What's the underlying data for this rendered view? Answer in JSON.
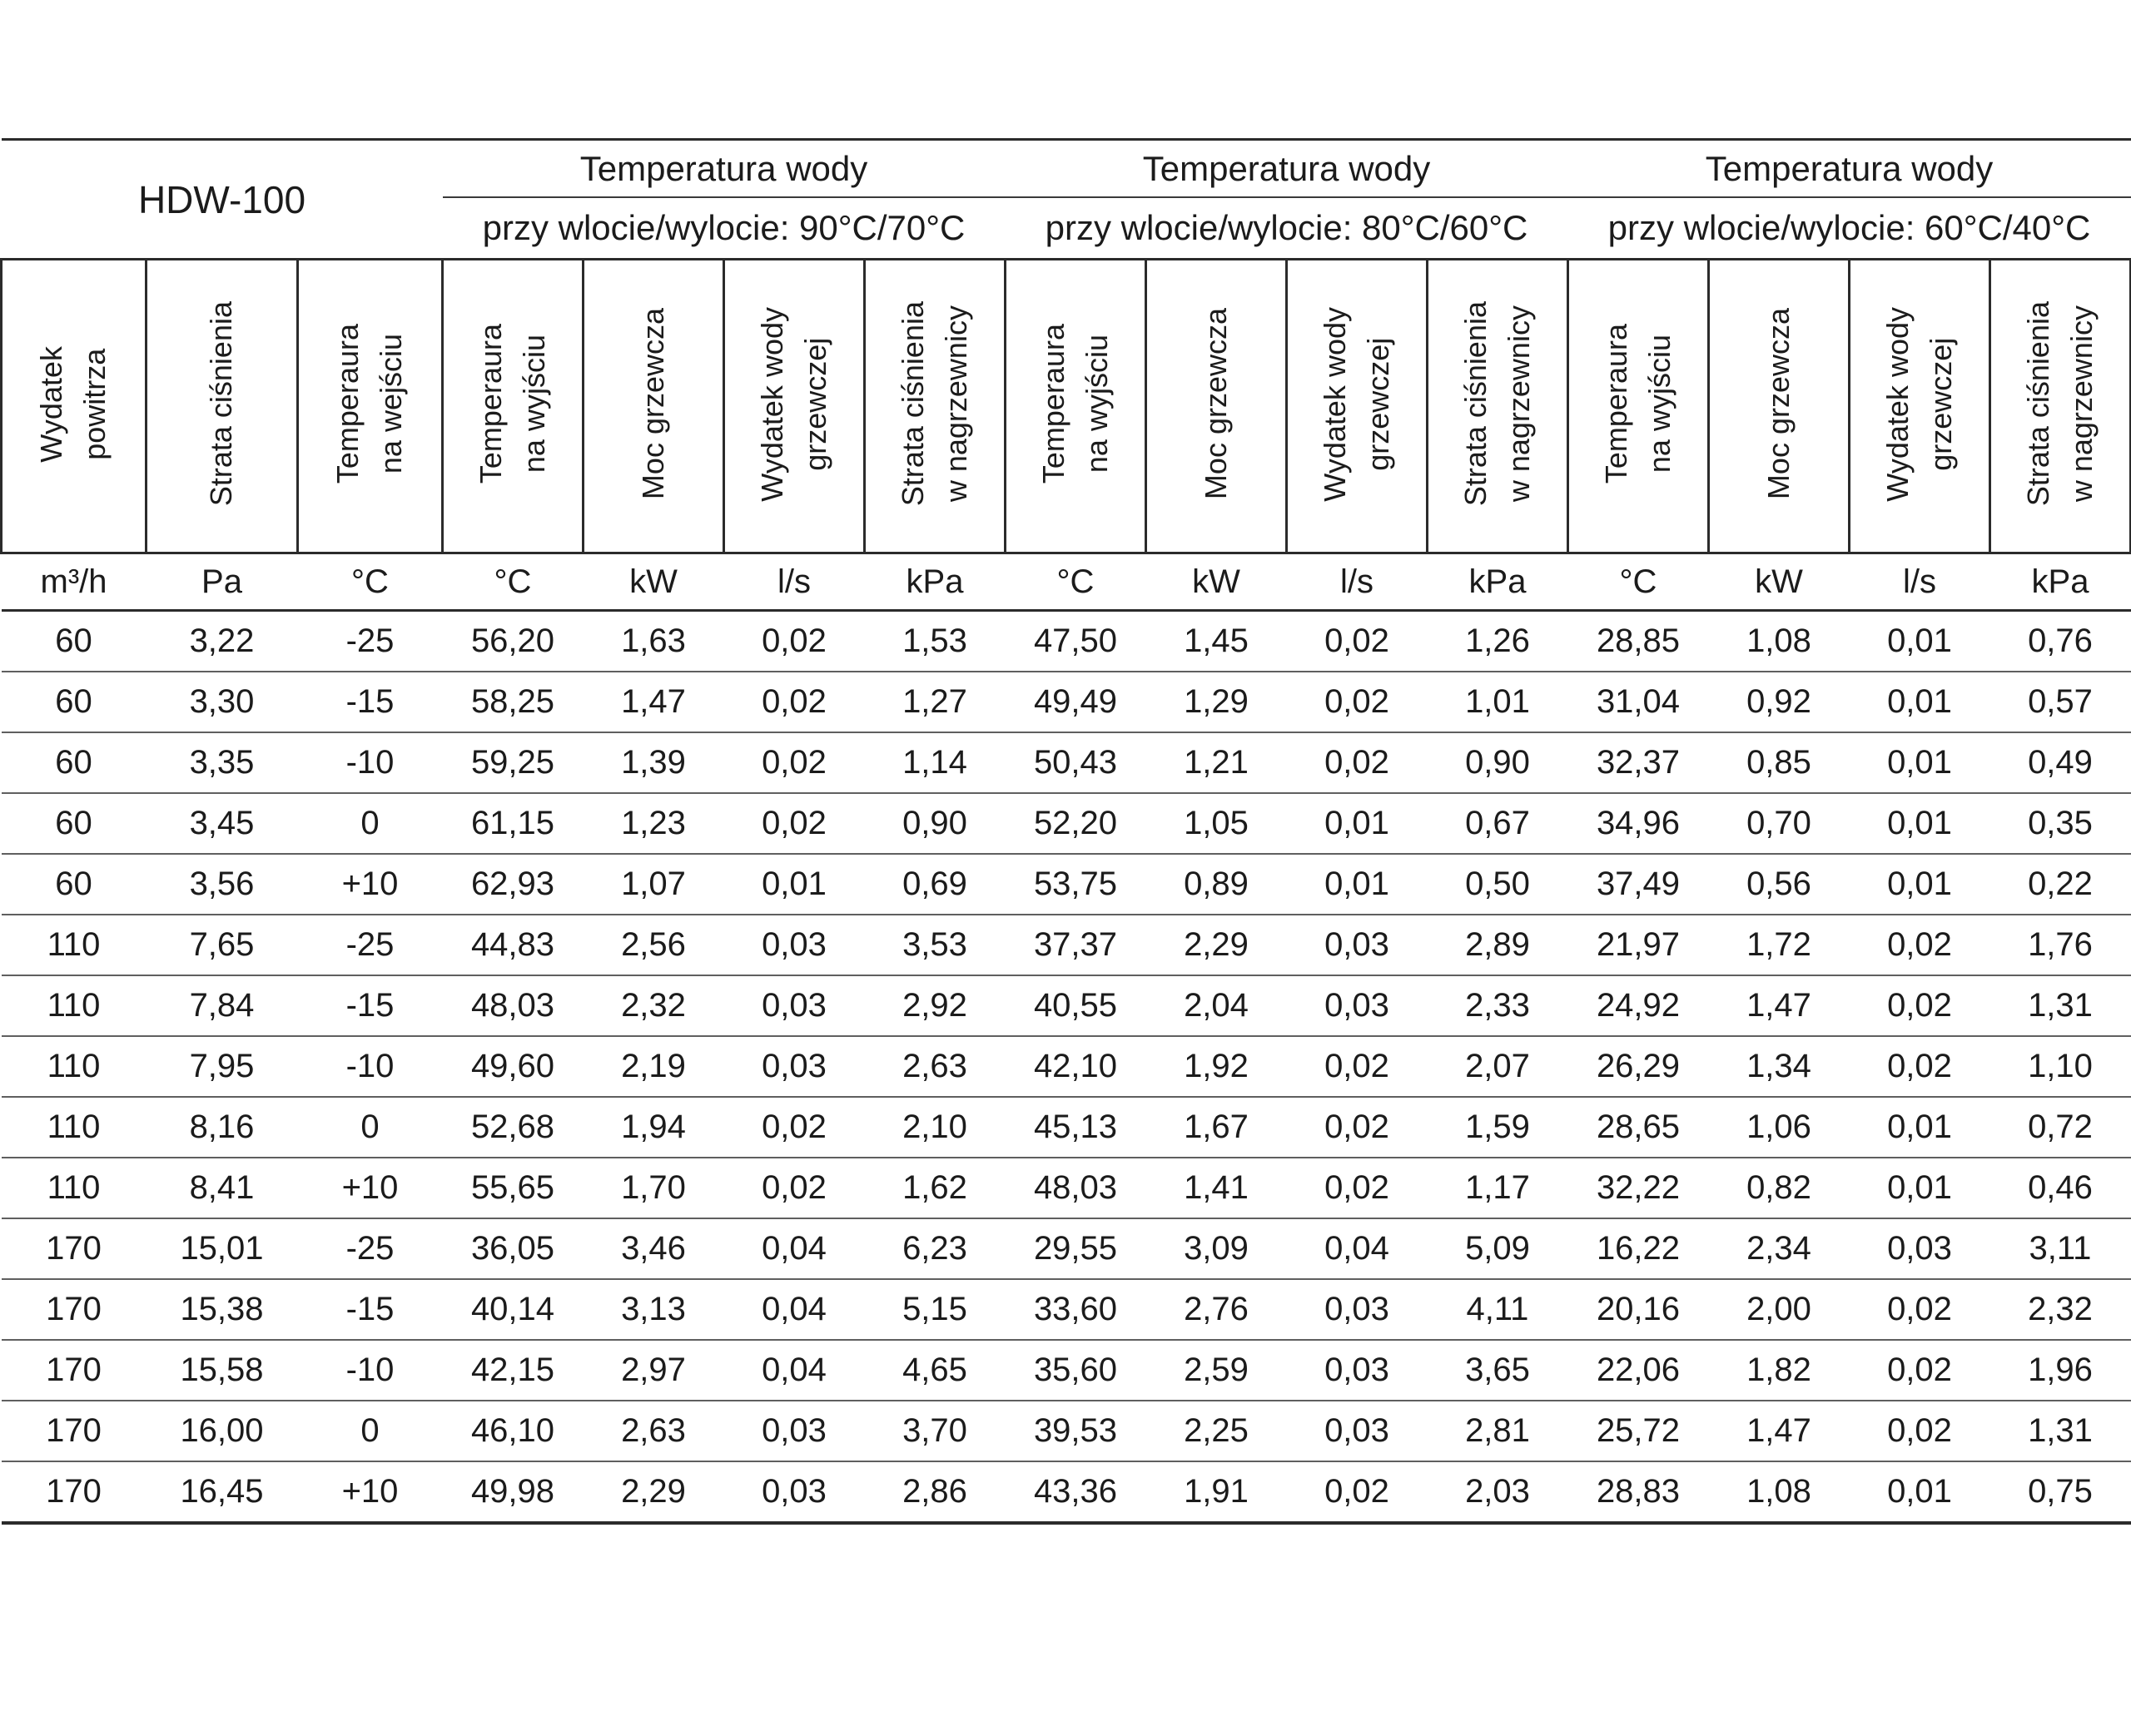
{
  "table": {
    "model": "HDW-100",
    "groups": [
      {
        "title": "Temperatura wody",
        "subtitle": "przy wlocie/wylocie: 90°C/70°C"
      },
      {
        "title": "Temperatura wody",
        "subtitle": "przy wlocie/wylocie: 80°C/60°C"
      },
      {
        "title": "Temperatura wody",
        "subtitle": "przy wlocie/wylocie: 60°C/40°C"
      }
    ],
    "columns": [
      {
        "key": "wydatek-powietrza",
        "label_lines": [
          "Wydatek",
          "powitrza"
        ],
        "unit": "m³/h"
      },
      {
        "key": "strata-cisnienia",
        "label_lines": [
          "Strata ciśnienia"
        ],
        "unit": "Pa"
      },
      {
        "key": "temperatura-wejscie",
        "label_lines": [
          "Temperaura",
          "na wejściu"
        ],
        "unit": "°C"
      },
      {
        "key": "g1-temperatura-wyjscie",
        "label_lines": [
          "Temperaura",
          "na wyjściu"
        ],
        "unit": "°C"
      },
      {
        "key": "g1-moc-grzewcza",
        "label_lines": [
          "Moc grzewcza"
        ],
        "unit": "kW"
      },
      {
        "key": "g1-wydatek-wody",
        "label_lines": [
          "Wydatek wody",
          "grzewczej"
        ],
        "unit": "l/s"
      },
      {
        "key": "g1-strata-nagrzewnica",
        "label_lines": [
          "Strata ciśnienia",
          "w nagrzewnicy"
        ],
        "unit": "kPa"
      },
      {
        "key": "g2-temperatura-wyjscie",
        "label_lines": [
          "Temperaura",
          "na wyjściu"
        ],
        "unit": "°C"
      },
      {
        "key": "g2-moc-grzewcza",
        "label_lines": [
          "Moc grzewcza"
        ],
        "unit": "kW"
      },
      {
        "key": "g2-wydatek-wody",
        "label_lines": [
          "Wydatek wody",
          "grzewczej"
        ],
        "unit": "l/s"
      },
      {
        "key": "g2-strata-nagrzewnica",
        "label_lines": [
          "Strata ciśnienia",
          "w nagrzewnicy"
        ],
        "unit": "kPa"
      },
      {
        "key": "g3-temperatura-wyjscie",
        "label_lines": [
          "Temperaura",
          "na wyjściu"
        ],
        "unit": "°C"
      },
      {
        "key": "g3-moc-grzewcza",
        "label_lines": [
          "Moc grzewcza"
        ],
        "unit": "kW"
      },
      {
        "key": "g3-wydatek-wody",
        "label_lines": [
          "Wydatek wody",
          "grzewczej"
        ],
        "unit": "l/s"
      },
      {
        "key": "g3-strata-nagrzewnica",
        "label_lines": [
          "Strata ciśnienia",
          "w nagrzewnicy"
        ],
        "unit": "kPa"
      }
    ],
    "rows": [
      [
        "60",
        "3,22",
        "-25",
        "56,20",
        "1,63",
        "0,02",
        "1,53",
        "47,50",
        "1,45",
        "0,02",
        "1,26",
        "28,85",
        "1,08",
        "0,01",
        "0,76"
      ],
      [
        "60",
        "3,30",
        "-15",
        "58,25",
        "1,47",
        "0,02",
        "1,27",
        "49,49",
        "1,29",
        "0,02",
        "1,01",
        "31,04",
        "0,92",
        "0,01",
        "0,57"
      ],
      [
        "60",
        "3,35",
        "-10",
        "59,25",
        "1,39",
        "0,02",
        "1,14",
        "50,43",
        "1,21",
        "0,02",
        "0,90",
        "32,37",
        "0,85",
        "0,01",
        "0,49"
      ],
      [
        "60",
        "3,45",
        "0",
        "61,15",
        "1,23",
        "0,02",
        "0,90",
        "52,20",
        "1,05",
        "0,01",
        "0,67",
        "34,96",
        "0,70",
        "0,01",
        "0,35"
      ],
      [
        "60",
        "3,56",
        "+10",
        "62,93",
        "1,07",
        "0,01",
        "0,69",
        "53,75",
        "0,89",
        "0,01",
        "0,50",
        "37,49",
        "0,56",
        "0,01",
        "0,22"
      ],
      [
        "110",
        "7,65",
        "-25",
        "44,83",
        "2,56",
        "0,03",
        "3,53",
        "37,37",
        "2,29",
        "0,03",
        "2,89",
        "21,97",
        "1,72",
        "0,02",
        "1,76"
      ],
      [
        "110",
        "7,84",
        "-15",
        "48,03",
        "2,32",
        "0,03",
        "2,92",
        "40,55",
        "2,04",
        "0,03",
        "2,33",
        "24,92",
        "1,47",
        "0,02",
        "1,31"
      ],
      [
        "110",
        "7,95",
        "-10",
        "49,60",
        "2,19",
        "0,03",
        "2,63",
        "42,10",
        "1,92",
        "0,02",
        "2,07",
        "26,29",
        "1,34",
        "0,02",
        "1,10"
      ],
      [
        "110",
        "8,16",
        "0",
        "52,68",
        "1,94",
        "0,02",
        "2,10",
        "45,13",
        "1,67",
        "0,02",
        "1,59",
        "28,65",
        "1,06",
        "0,01",
        "0,72"
      ],
      [
        "110",
        "8,41",
        "+10",
        "55,65",
        "1,70",
        "0,02",
        "1,62",
        "48,03",
        "1,41",
        "0,02",
        "1,17",
        "32,22",
        "0,82",
        "0,01",
        "0,46"
      ],
      [
        "170",
        "15,01",
        "-25",
        "36,05",
        "3,46",
        "0,04",
        "6,23",
        "29,55",
        "3,09",
        "0,04",
        "5,09",
        "16,22",
        "2,34",
        "0,03",
        "3,11"
      ],
      [
        "170",
        "15,38",
        "-15",
        "40,14",
        "3,13",
        "0,04",
        "5,15",
        "33,60",
        "2,76",
        "0,03",
        "4,11",
        "20,16",
        "2,00",
        "0,02",
        "2,32"
      ],
      [
        "170",
        "15,58",
        "-10",
        "42,15",
        "2,97",
        "0,04",
        "4,65",
        "35,60",
        "2,59",
        "0,03",
        "3,65",
        "22,06",
        "1,82",
        "0,02",
        "1,96"
      ],
      [
        "170",
        "16,00",
        "0",
        "46,10",
        "2,63",
        "0,03",
        "3,70",
        "39,53",
        "2,25",
        "0,03",
        "2,81",
        "25,72",
        "1,47",
        "0,02",
        "1,31"
      ],
      [
        "170",
        "16,45",
        "+10",
        "49,98",
        "2,29",
        "0,03",
        "2,86",
        "43,36",
        "1,91",
        "0,02",
        "2,03",
        "28,83",
        "1,08",
        "0,01",
        "0,75"
      ]
    ]
  }
}
